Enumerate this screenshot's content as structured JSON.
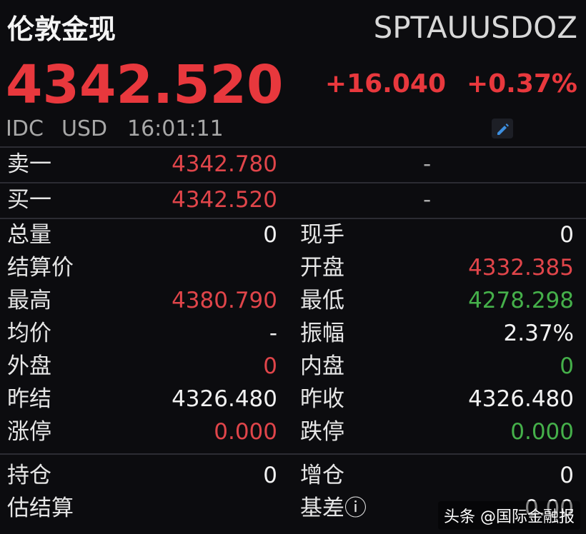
{
  "header": {
    "title": "伦敦金现",
    "code": "SPTAUUSDOZ",
    "price": "4342.520",
    "price_color": "#e8383d",
    "change": "+16.040",
    "change_pct": "+0.37%",
    "change_color": "#e8383d",
    "meta": [
      "IDC",
      "USD",
      "16:01:11"
    ]
  },
  "quote_rows": [
    {
      "label": "卖一",
      "value": "4342.780",
      "color": "#e0454a",
      "volume": "-"
    },
    {
      "label": "买一",
      "value": "4342.520",
      "color": "#e0454a",
      "volume": "-"
    }
  ],
  "stats": [
    {
      "left": {
        "label": "总量",
        "value": "0",
        "color": "#f2f2f2"
      },
      "right": {
        "label": "现手",
        "value": "0",
        "color": "#f2f2f2"
      }
    },
    {
      "left": {
        "label": "结算价",
        "value": "",
        "color": "#f2f2f2"
      },
      "right": {
        "label": "开盘",
        "value": "4332.385",
        "color": "#e0454a"
      }
    },
    {
      "left": {
        "label": "最高",
        "value": "4380.790",
        "color": "#e0454a"
      },
      "right": {
        "label": "最低",
        "value": "4278.298",
        "color": "#45b04a"
      }
    },
    {
      "left": {
        "label": "均价",
        "value": "-",
        "color": "#f2f2f2"
      },
      "right": {
        "label": "振幅",
        "value": "2.37%",
        "color": "#f2f2f2"
      }
    },
    {
      "left": {
        "label": "外盘",
        "value": "0",
        "color": "#e0454a"
      },
      "right": {
        "label": "内盘",
        "value": "0",
        "color": "#45b04a"
      }
    },
    {
      "left": {
        "label": "昨结",
        "value": "4326.480",
        "color": "#f2f2f2"
      },
      "right": {
        "label": "昨收",
        "value": "4326.480",
        "color": "#f2f2f2"
      }
    },
    {
      "left": {
        "label": "涨停",
        "value": "0.000",
        "color": "#e0454a"
      },
      "right": {
        "label": "跌停",
        "value": "0.000",
        "color": "#45b04a"
      }
    }
  ],
  "position": [
    {
      "left": {
        "label": "持仓",
        "value": "0",
        "color": "#f2f2f2"
      },
      "right": {
        "label": "增仓",
        "value": "0",
        "color": "#f2f2f2"
      }
    },
    {
      "left": {
        "label": "估结算",
        "value": "",
        "color": "#f2f2f2"
      },
      "right": {
        "label": "基差ⓘ",
        "value": "0.00",
        "color": "#f2f2f2"
      }
    }
  ],
  "watermark": "头条 @国际金融报"
}
